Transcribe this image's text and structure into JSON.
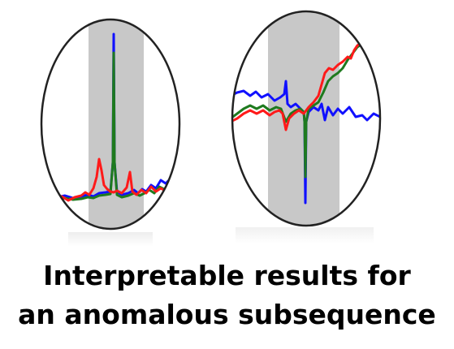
{
  "caption": {
    "line1": "Interpretable results for",
    "line2": "an anomalous subsequence"
  },
  "colors": {
    "series_blue": "#1010ff",
    "series_green": "#1e7a1e",
    "series_red": "#ff1a1a",
    "highlight_band": "#c8c8c8",
    "ellipse_outline": "#222222"
  },
  "panels": [
    {
      "name": "left-zoom-panel",
      "anomaly": "spike-up"
    },
    {
      "name": "right-zoom-panel",
      "anomaly": "spike-down-then-rise"
    }
  ]
}
